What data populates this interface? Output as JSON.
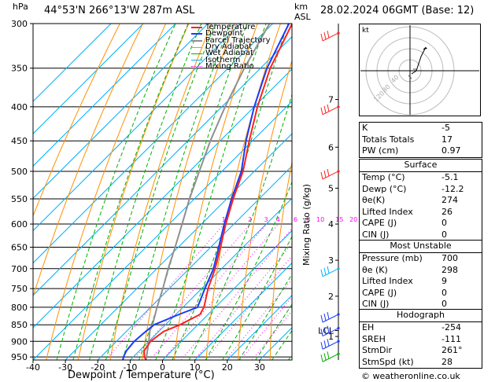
{
  "header": {
    "location": "44°53'N  266°13'W  287m  ASL",
    "datetime": "28.02.2024  06GMT  (Base: 12)",
    "hpa_unit": "hPa",
    "km_unit": "km",
    "asl_unit": "ASL"
  },
  "chart_data": {
    "type": "line",
    "xlabel": "Dewpoint / Temperature (°C)",
    "y2label": "Mixing Ratio (g/kg)",
    "xlim": [
      -40,
      40
    ],
    "x_ticks": [
      "-40",
      "-30",
      "-20",
      "-10",
      "0",
      "10",
      "20",
      "30"
    ],
    "y_ticks": [
      "300",
      "350",
      "400",
      "450",
      "500",
      "550",
      "600",
      "650",
      "700",
      "750",
      "800",
      "850",
      "900",
      "950"
    ],
    "km_ticks": [
      {
        "label": "7",
        "p": 390
      },
      {
        "label": "6",
        "p": 460
      },
      {
        "label": "5",
        "p": 530
      },
      {
        "label": "4",
        "p": 600
      },
      {
        "label": "3",
        "p": 680
      },
      {
        "label": "2",
        "p": 770
      },
      {
        "label": "1",
        "p": 885
      },
      {
        "label": "LCL",
        "p": 867
      }
    ],
    "mixing_ratio_labels": [
      "1",
      "2",
      "3",
      "4",
      "6",
      "8",
      "10",
      "15",
      "20",
      "25"
    ],
    "legend": [
      "Temperature",
      "Dewpoint",
      "Parcel Trajectory",
      "Dry Adiabat",
      "Wet Adiabat",
      "Isotherm",
      "Mixing Ratio"
    ],
    "series": [
      {
        "name": "Temperature",
        "p": [
          960,
          950,
          930,
          900,
          870,
          850,
          820,
          800,
          750,
          700,
          650,
          600,
          550,
          500,
          450,
          400,
          350,
          300
        ],
        "t": [
          -5.1,
          -6.5,
          -8.5,
          -9.5,
          -8.5,
          -5.5,
          -2.5,
          -3.5,
          -8,
          -12,
          -17,
          -22.5,
          -28,
          -33.5,
          -41,
          -49,
          -57,
          -64
        ]
      },
      {
        "name": "Dewpoint",
        "p": [
          960,
          950,
          930,
          900,
          870,
          850,
          820,
          800,
          750,
          700,
          650,
          600,
          550,
          500,
          450,
          400,
          350,
          300
        ],
        "t": [
          -12.2,
          -13,
          -14,
          -14.5,
          -14,
          -13.5,
          -9,
          -5.5,
          -9,
          -12.5,
          -17.5,
          -23,
          -28.5,
          -34,
          -42,
          -50,
          -58,
          -65
        ]
      },
      {
        "name": "Parcel Trajectory",
        "p": [
          960,
          900,
          867,
          850,
          800,
          750,
          700,
          650,
          600,
          550,
          500,
          450,
          400,
          350,
          300
        ],
        "t": [
          -5.1,
          -10,
          -13,
          -14,
          -18,
          -22,
          -26.5,
          -31,
          -36,
          -41.5,
          -47,
          -53,
          -59,
          -65,
          -71
        ]
      }
    ]
  },
  "legend_colors": {
    "temperature": "#ff2020",
    "dewpoint": "#1a3cff",
    "parcel": "#909090",
    "dry_adiabat": "#ff9000",
    "wet_adiabat": "#00b000",
    "isotherm": "#00b0ff",
    "mixing_ratio": "#ff00ff"
  },
  "hodograph": {
    "label": "kt",
    "ring_labels": [
      "120",
      "80",
      "40"
    ]
  },
  "indices": [
    {
      "label": "K",
      "value": "-5"
    },
    {
      "label": "Totals Totals",
      "value": "17"
    },
    {
      "label": "PW (cm)",
      "value": "0.97"
    }
  ],
  "surface": {
    "title": "Surface",
    "rows": [
      {
        "label": "Temp (°C)",
        "value": "-5.1"
      },
      {
        "label": "Dewp (°C)",
        "value": "-12.2"
      },
      {
        "label": "θe(K)",
        "value": "274"
      },
      {
        "label": "Lifted Index",
        "value": "26"
      },
      {
        "label": "CAPE (J)",
        "value": "0"
      },
      {
        "label": "CIN (J)",
        "value": "0"
      }
    ]
  },
  "most_unstable": {
    "title": "Most Unstable",
    "rows": [
      {
        "label": "Pressure (mb)",
        "value": "700"
      },
      {
        "label": "θe (K)",
        "value": "298"
      },
      {
        "label": "Lifted Index",
        "value": "9"
      },
      {
        "label": "CAPE (J)",
        "value": "0"
      },
      {
        "label": "CIN (J)",
        "value": "0"
      }
    ]
  },
  "hodograph_table": {
    "title": "Hodograph",
    "rows": [
      {
        "label": "EH",
        "value": "-254"
      },
      {
        "label": "SREH",
        "value": "-111"
      },
      {
        "label": "StmDir",
        "value": "261°"
      },
      {
        "label": "StmSpd (kt)",
        "value": "28"
      }
    ]
  },
  "copyright": "© weatheronline.co.uk"
}
